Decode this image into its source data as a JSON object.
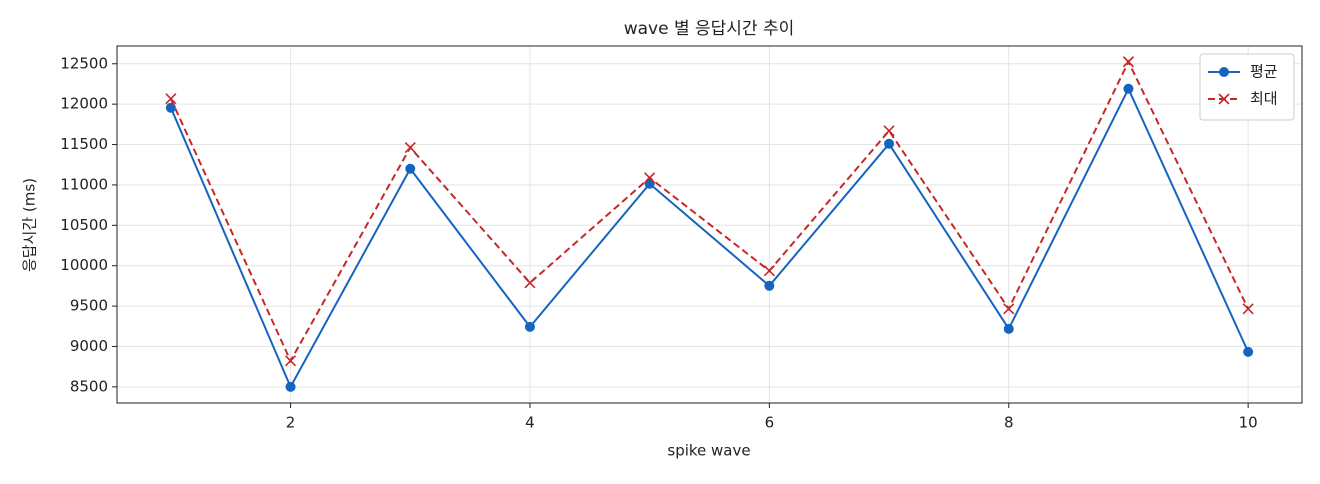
{
  "chart_data": {
    "type": "line",
    "title": "wave 별 응답시간 추이",
    "xlabel": "spike wave",
    "ylabel": "응답시간 (ms)",
    "x": [
      1,
      2,
      3,
      4,
      5,
      6,
      7,
      8,
      9,
      10
    ],
    "series": [
      {
        "name": "평균",
        "color": "#1565c0",
        "marker": "circle",
        "dash": false,
        "values": [
          11955,
          8500,
          11200,
          9243,
          11014,
          9751,
          11509,
          9218,
          12190,
          8933
        ]
      },
      {
        "name": "최대",
        "color": "#c62828",
        "marker": "x",
        "dash": true,
        "values": [
          12067,
          8822,
          11463,
          9788,
          11088,
          9937,
          11670,
          9466,
          12525,
          9466
        ]
      }
    ],
    "xlim": [
      0.55,
      10.45
    ],
    "xticks": [
      2,
      4,
      6,
      8,
      10
    ],
    "ylim": [
      8300,
      12720
    ],
    "yticks": [
      8500,
      9000,
      9500,
      10000,
      10500,
      11000,
      11500,
      12000,
      12500
    ],
    "grid": true,
    "legend": "upper right"
  }
}
